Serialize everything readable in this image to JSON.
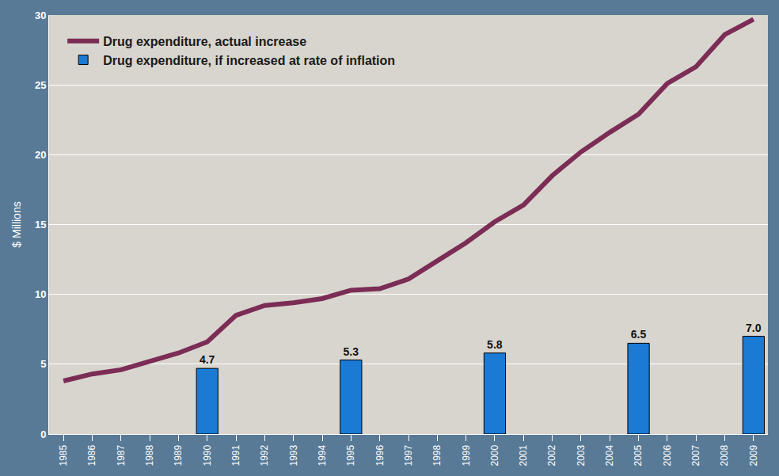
{
  "chart_data": {
    "type": "line",
    "y_label": "$ Millions",
    "categories": [
      "1985",
      "1986",
      "1987",
      "1988",
      "1989",
      "1990",
      "1991",
      "1992",
      "1993",
      "1994",
      "1995",
      "1996",
      "1997",
      "1998",
      "1999",
      "2000",
      "2001",
      "2002",
      "2003",
      "2004",
      "2005",
      "2006",
      "2007",
      "2008",
      "2009"
    ],
    "ylim": [
      0,
      30
    ],
    "yticks": [
      0,
      5,
      10,
      15,
      20,
      25,
      30
    ],
    "grid": true,
    "legend": "top-left",
    "series": [
      {
        "name": "Drug expenditure, actual increase",
        "type": "line",
        "color": "#7b2d55",
        "values": [
          3.8,
          4.3,
          4.6,
          5.2,
          5.8,
          6.6,
          8.5,
          9.2,
          9.4,
          9.7,
          10.3,
          10.4,
          11.1,
          12.4,
          13.7,
          15.2,
          16.4,
          18.5,
          20.2,
          21.6,
          22.9,
          25.1,
          26.3,
          28.6,
          29.7
        ]
      },
      {
        "name": "Drug expenditure, if increased at rate of inflation",
        "type": "bar",
        "color": "#1a7ad4",
        "data_labels": true,
        "values": [
          null,
          null,
          null,
          null,
          null,
          4.7,
          null,
          null,
          null,
          null,
          5.3,
          null,
          null,
          null,
          null,
          5.8,
          null,
          null,
          null,
          null,
          6.5,
          null,
          null,
          null,
          7
        ],
        "value_labels": [
          null,
          null,
          null,
          null,
          null,
          "4.7",
          null,
          null,
          null,
          null,
          "5.3",
          null,
          null,
          null,
          null,
          "5.8",
          null,
          null,
          null,
          null,
          "6.5",
          null,
          null,
          null,
          "7.0"
        ]
      }
    ]
  }
}
